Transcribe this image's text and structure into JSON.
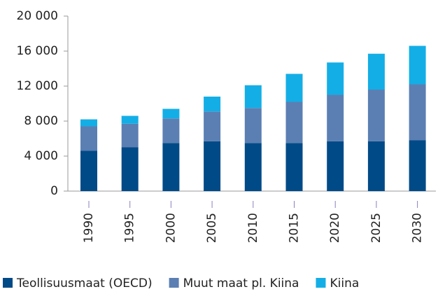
{
  "chart_data": {
    "type": "stacked_bar",
    "categories": [
      "1990",
      "1995",
      "2000",
      "2005",
      "2010",
      "2015",
      "2020",
      "2025",
      "2030"
    ],
    "series": [
      {
        "name": "Teollisuusmaat (OECD)",
        "color": "#004a87",
        "values": [
          4600,
          5000,
          5500,
          5700,
          5500,
          5500,
          5700,
          5700,
          5800
        ]
      },
      {
        "name": "Muut maat pl. Kiina",
        "color": "#5b7fb3",
        "values": [
          2800,
          2700,
          2800,
          3400,
          4000,
          4700,
          5300,
          5900,
          6400
        ]
      },
      {
        "name": "Kiina",
        "color": "#14aee6",
        "values": [
          800,
          900,
          1100,
          1700,
          2600,
          3200,
          3700,
          4100,
          4400
        ]
      }
    ],
    "ylim": [
      0,
      20000
    ],
    "yticks": [
      0,
      {
        "value": 4000,
        "label": "4 000"
      },
      {
        "value": 8000,
        "label": "8 000"
      },
      {
        "value": 12000,
        "label": "12 000"
      },
      {
        "value": 16000,
        "label": "16 000"
      },
      {
        "value": 20000,
        "label": "20 000"
      }
    ]
  }
}
